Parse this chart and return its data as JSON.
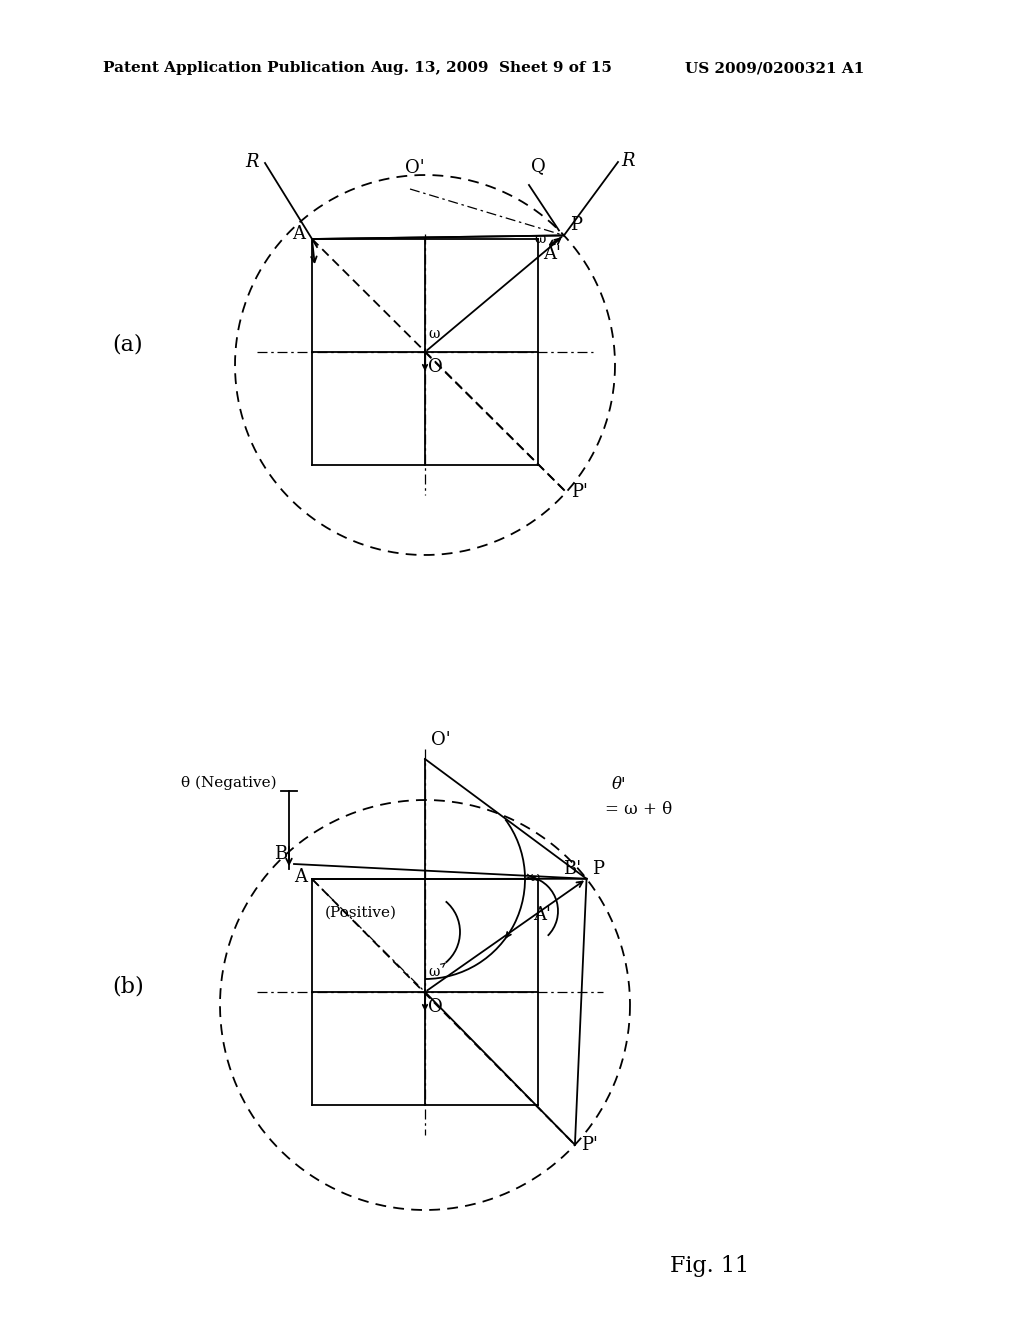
{
  "background": "#ffffff",
  "header_left": "Patent Application Publication",
  "header_mid": "Aug. 13, 2009  Sheet 9 of 15",
  "header_right": "US 2009/0200321 A1",
  "fig_label": "Fig. 11",
  "label_a": "(a)",
  "label_b": "(b)"
}
